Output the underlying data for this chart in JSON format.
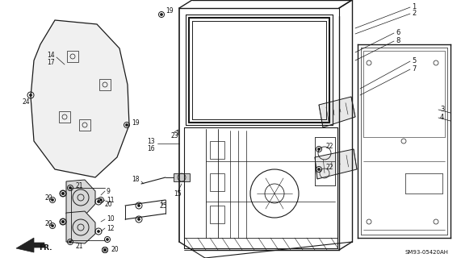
{
  "background_color": "#ffffff",
  "diagram_code": "SM93-05420AH",
  "fig_width": 5.71,
  "fig_height": 3.2,
  "dpi": 100,
  "line_color": "#1a1a1a",
  "text_color": "#111111",
  "label_fontsize": 5.8
}
